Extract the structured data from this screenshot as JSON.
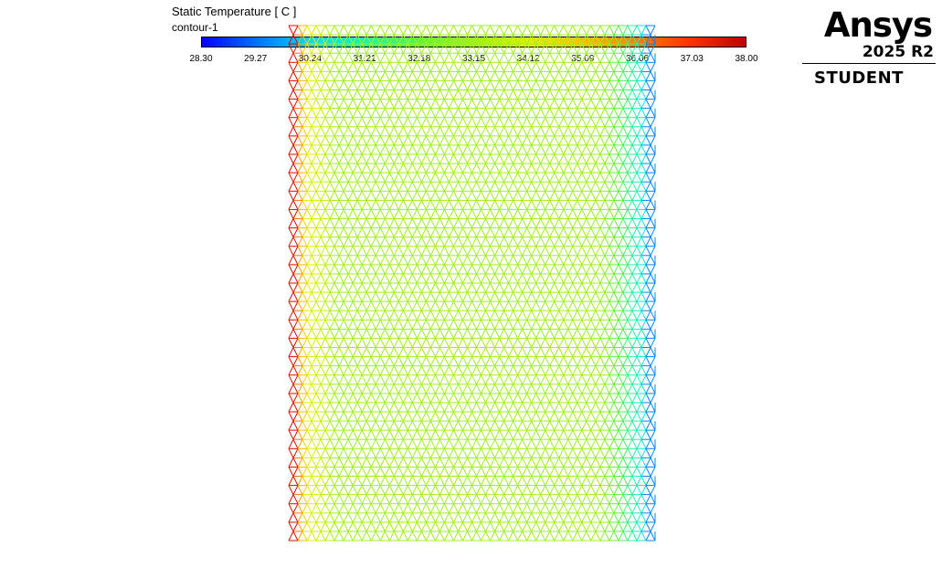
{
  "legend": {
    "title": "Static Temperature [ C ]",
    "subtitle": "contour-1",
    "min": 28.3,
    "max": 38.0,
    "ticks": [
      "28.30",
      "29.27",
      "30.24",
      "31.21",
      "32.18",
      "33.15",
      "34.12",
      "35.09",
      "36.06",
      "37.03",
      "38.00"
    ],
    "colormap": [
      "#0000ff",
      "#0072ff",
      "#00d9ff",
      "#20f0b0",
      "#60f040",
      "#a0f020",
      "#e0f000",
      "#ffc000",
      "#ff8000",
      "#ff3000",
      "#c00000"
    ]
  },
  "branding": {
    "product": "Ansys",
    "version": "2025 R2",
    "edition": "STUDENT"
  }
}
